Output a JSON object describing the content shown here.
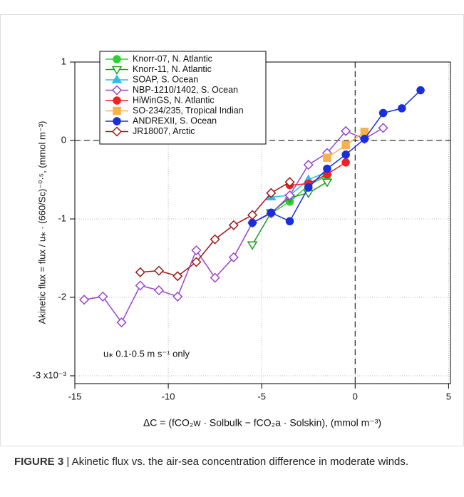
{
  "chart_data": {
    "type": "line",
    "x_label": "ΔC = (fCO₂w · Solbulk − fCO₂a · Solskin), (mmol m⁻³)",
    "y_label": "Akinetic flux = flux / u⁎ · (660/Sc)⁻⁰·⁵, (mmol m⁻³)",
    "annotation": "u⁎ 0.1-0.5 m s⁻¹ only",
    "xlim": [
      -15,
      5.1
    ],
    "ylim": [
      -3.1,
      1
    ],
    "xticks": [
      -15,
      -10,
      -5,
      0,
      5
    ],
    "yticks": [
      {
        "value": -3,
        "label": "-3 x10⁻³"
      },
      -2,
      -1,
      0,
      1
    ],
    "grid": true,
    "vline": 0,
    "hline": 0,
    "series": [
      {
        "name": "Knorr-07, N. Atlantic",
        "color": "#33cc33",
        "marker": "circle",
        "filled": true,
        "x": [
          -4.5,
          -3.5,
          -2.5,
          -1.5
        ],
        "values": [
          -0.93,
          -0.78,
          -0.57,
          -0.45
        ]
      },
      {
        "name": "Knorr-11, N. Atlantic",
        "color": "#1f9a1f",
        "marker": "triangle-down",
        "filled": false,
        "x": [
          -5.5,
          -4.5,
          -3.5,
          -2.5,
          -1.5
        ],
        "values": [
          -1.33,
          -0.92,
          -0.73,
          -0.67,
          -0.53
        ]
      },
      {
        "name": "SOAP, S. Ocean",
        "color": "#33bbee",
        "marker": "triangle-up",
        "filled": true,
        "x": [
          -4.5,
          -3.5,
          -2.5,
          -1.5
        ],
        "values": [
          -0.72,
          -0.7,
          -0.5,
          -0.4
        ]
      },
      {
        "name": "NBP-1210/1402, S. Ocean",
        "color": "#9944cc",
        "marker": "diamond",
        "filled": false,
        "x": [
          -14.5,
          -13.5,
          -12.5,
          -11.5,
          -10.5,
          -9.5,
          -8.5,
          -7.5,
          -6.5,
          -5.5,
          -4.5,
          -3.5,
          -2.5,
          -1.5,
          -0.5,
          0.5,
          1.5
        ],
        "values": [
          -2.03,
          -1.99,
          -2.32,
          -1.85,
          -1.91,
          -1.99,
          -1.4,
          -1.75,
          -1.49,
          -1.05,
          -0.93,
          -0.7,
          -0.31,
          -0.16,
          0.12,
          0.02,
          0.16
        ]
      },
      {
        "name": "HiWinGS, N. Atlantic",
        "color": "#ee2222",
        "marker": "circle",
        "filled": true,
        "x": [
          -3.5,
          -2.5,
          -1.5,
          -0.5
        ],
        "values": [
          -0.57,
          -0.55,
          -0.43,
          -0.28
        ]
      },
      {
        "name": "SO-234/235, Tropical Indian",
        "color": "#f7b24a",
        "marker": "square",
        "filled": true,
        "x": [
          -1.5,
          -0.5,
          0.5
        ],
        "values": [
          -0.22,
          -0.06,
          0.11
        ]
      },
      {
        "name": "ANDREXII, S. Ocean",
        "color": "#1a2ee0",
        "marker": "circle",
        "filled": true,
        "x": [
          -5.5,
          -4.5,
          -3.5,
          -2.5,
          -1.5,
          -0.5,
          0.5,
          1.5,
          2.5,
          3.5
        ],
        "values": [
          -1.05,
          -0.92,
          -1.03,
          -0.6,
          -0.36,
          -0.18,
          0.02,
          0.35,
          0.41,
          0.64
        ]
      },
      {
        "name": "JR18007, Arctic",
        "color": "#a01818",
        "marker": "diamond",
        "filled": false,
        "x": [
          -11.5,
          -10.5,
          -9.5,
          -8.5,
          -7.5,
          -6.5,
          -5.5,
          -4.5,
          -3.5
        ],
        "values": [
          -1.68,
          -1.66,
          -1.73,
          -1.55,
          -1.26,
          -1.08,
          -0.95,
          -0.67,
          -0.53
        ]
      }
    ]
  },
  "caption": {
    "label": "FIGURE 3",
    "text": "| Akinetic flux vs. the air-sea concentration difference in moderate winds."
  }
}
